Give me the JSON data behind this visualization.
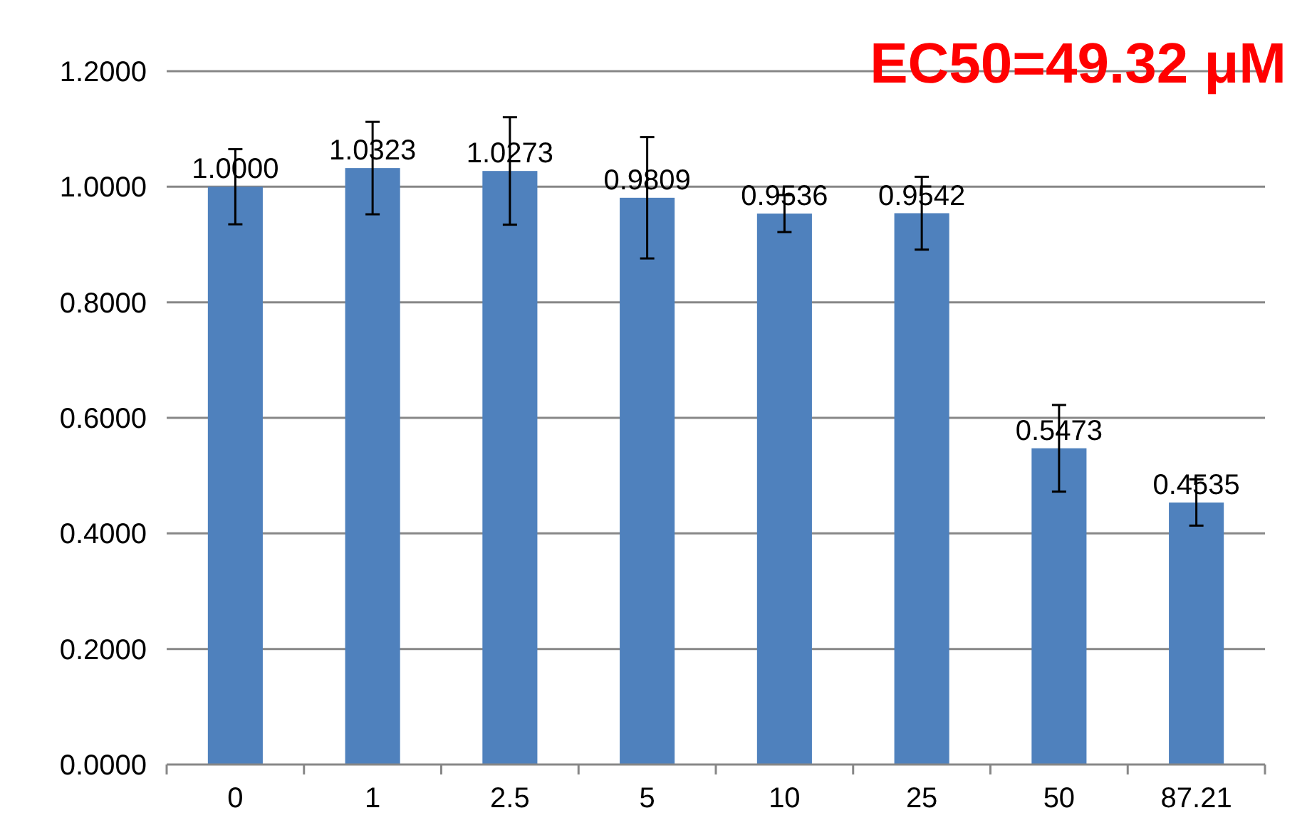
{
  "chart_data": {
    "type": "bar",
    "categories": [
      "0",
      "1",
      "2.5",
      "5",
      "10",
      "25",
      "50",
      "87.21"
    ],
    "values": [
      1.0,
      1.0323,
      1.0273,
      0.9809,
      0.9536,
      0.9542,
      0.5473,
      0.4535
    ],
    "errors": [
      0.065,
      0.08,
      0.093,
      0.105,
      0.032,
      0.063,
      0.075,
      0.04
    ],
    "color": "#4f81bd",
    "ylim": [
      0,
      1.2
    ],
    "yticks": [
      {
        "value": 0,
        "label": "0.0000"
      },
      {
        "value": 0.2,
        "label": "0.2000"
      },
      {
        "value": 0.4,
        "label": "0.4000"
      },
      {
        "value": 0.6,
        "label": "0.6000"
      },
      {
        "value": 0.8,
        "label": "0.8000"
      },
      {
        "value": 1,
        "label": "1.0000"
      },
      {
        "value": 1.2,
        "label": "1.2000"
      }
    ],
    "grid": "y",
    "value_labels": [
      "1.0000",
      "1.0323",
      "1.0273",
      "0.9809",
      "0.9536",
      "0.9542",
      "0.5473",
      "0.4535"
    ],
    "annotations": [
      "EC50=49.32 μM"
    ]
  }
}
